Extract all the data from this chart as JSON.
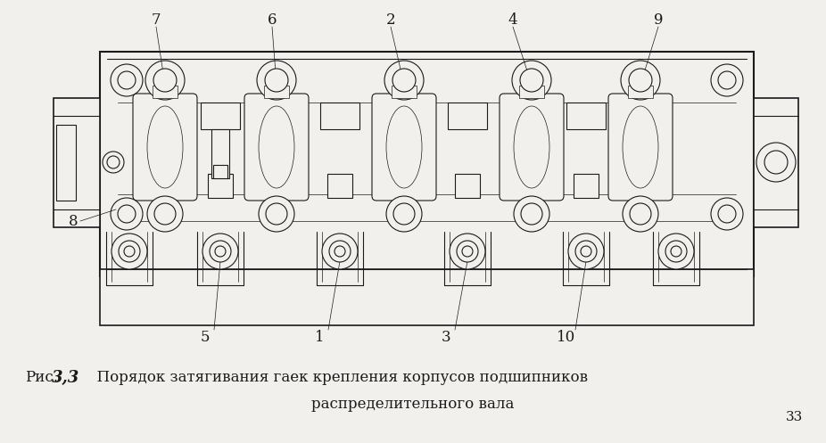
{
  "bg_color": "#f2f0ec",
  "line_color": "#1a1a1a",
  "fig_width": 9.26,
  "fig_height": 4.97,
  "caption_prefix": "Рис.",
  "caption_fig_num": "3,3",
  "caption_text1": "  Порядок затягивания гаек крепления корпусов подшипников",
  "caption_line2": "распределительного вала",
  "page_number": "33"
}
